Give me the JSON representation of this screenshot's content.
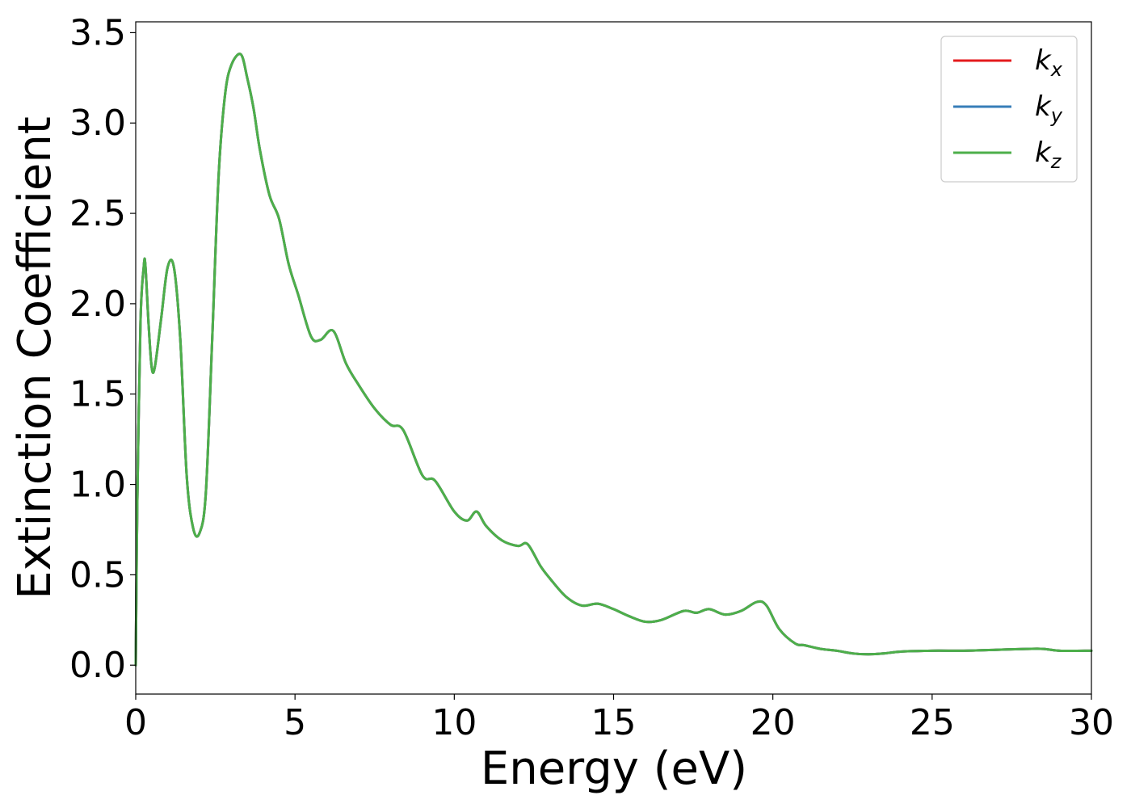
{
  "chart_data": {
    "type": "line",
    "title": "",
    "xlabel": "Energy (eV)",
    "ylabel": "Extinction Coefficient",
    "xlim": [
      0,
      30
    ],
    "ylim": [
      -0.16,
      3.56
    ],
    "xticks": [
      0,
      5,
      10,
      15,
      20,
      25,
      30
    ],
    "yticks": [
      0.0,
      0.5,
      1.0,
      1.5,
      2.0,
      2.5,
      3.0,
      3.5
    ],
    "x_tick_labels": [
      "0",
      "5",
      "10",
      "15",
      "20",
      "25",
      "30"
    ],
    "y_tick_labels": [
      "0.0",
      "0.5",
      "1.0",
      "1.5",
      "2.0",
      "2.5",
      "3.0",
      "3.5"
    ],
    "grid": false,
    "legend_position": "top-right",
    "series": [
      {
        "name": "k",
        "subscript": "x",
        "color": "#e41a1c"
      },
      {
        "name": "k",
        "subscript": "y",
        "color": "#377eb8"
      },
      {
        "name": "k",
        "subscript": "z",
        "color": "#4daf4a"
      }
    ],
    "curve_note_shared": true,
    "x": [
      0.0,
      0.05,
      0.15,
      0.25,
      0.3,
      0.4,
      0.5,
      0.6,
      0.8,
      1.0,
      1.2,
      1.4,
      1.6,
      1.8,
      2.0,
      2.2,
      2.4,
      2.6,
      2.8,
      3.0,
      3.3,
      3.5,
      3.7,
      3.9,
      4.2,
      4.5,
      4.8,
      5.1,
      5.5,
      5.8,
      6.2,
      6.6,
      7.0,
      7.5,
      8.0,
      8.4,
      9.0,
      9.4,
      10.0,
      10.4,
      10.7,
      11.0,
      11.5,
      12.0,
      12.3,
      12.7,
      13.0,
      13.5,
      14.0,
      14.5,
      15.0,
      15.5,
      16.0,
      16.5,
      17.2,
      17.6,
      18.0,
      18.5,
      19.0,
      19.5,
      19.8,
      20.2,
      20.7,
      21.0,
      21.5,
      22.0,
      22.5,
      23.0,
      23.5,
      24.0,
      25.0,
      26.0,
      27.0,
      28.0,
      28.5,
      29.0,
      30.0
    ],
    "y": [
      0.0,
      0.9,
      1.9,
      2.2,
      2.22,
      1.9,
      1.65,
      1.65,
      1.92,
      2.2,
      2.2,
      1.8,
      1.05,
      0.76,
      0.73,
      0.95,
      1.8,
      2.7,
      3.15,
      3.32,
      3.38,
      3.25,
      3.08,
      2.85,
      2.6,
      2.47,
      2.22,
      2.05,
      1.82,
      1.8,
      1.85,
      1.67,
      1.55,
      1.42,
      1.33,
      1.3,
      1.05,
      1.02,
      0.85,
      0.8,
      0.85,
      0.77,
      0.69,
      0.66,
      0.67,
      0.55,
      0.48,
      0.38,
      0.33,
      0.34,
      0.31,
      0.27,
      0.24,
      0.25,
      0.3,
      0.29,
      0.31,
      0.28,
      0.3,
      0.35,
      0.33,
      0.2,
      0.12,
      0.11,
      0.09,
      0.08,
      0.065,
      0.06,
      0.065,
      0.075,
      0.08,
      0.08,
      0.085,
      0.09,
      0.09,
      0.08,
      0.08
    ]
  }
}
